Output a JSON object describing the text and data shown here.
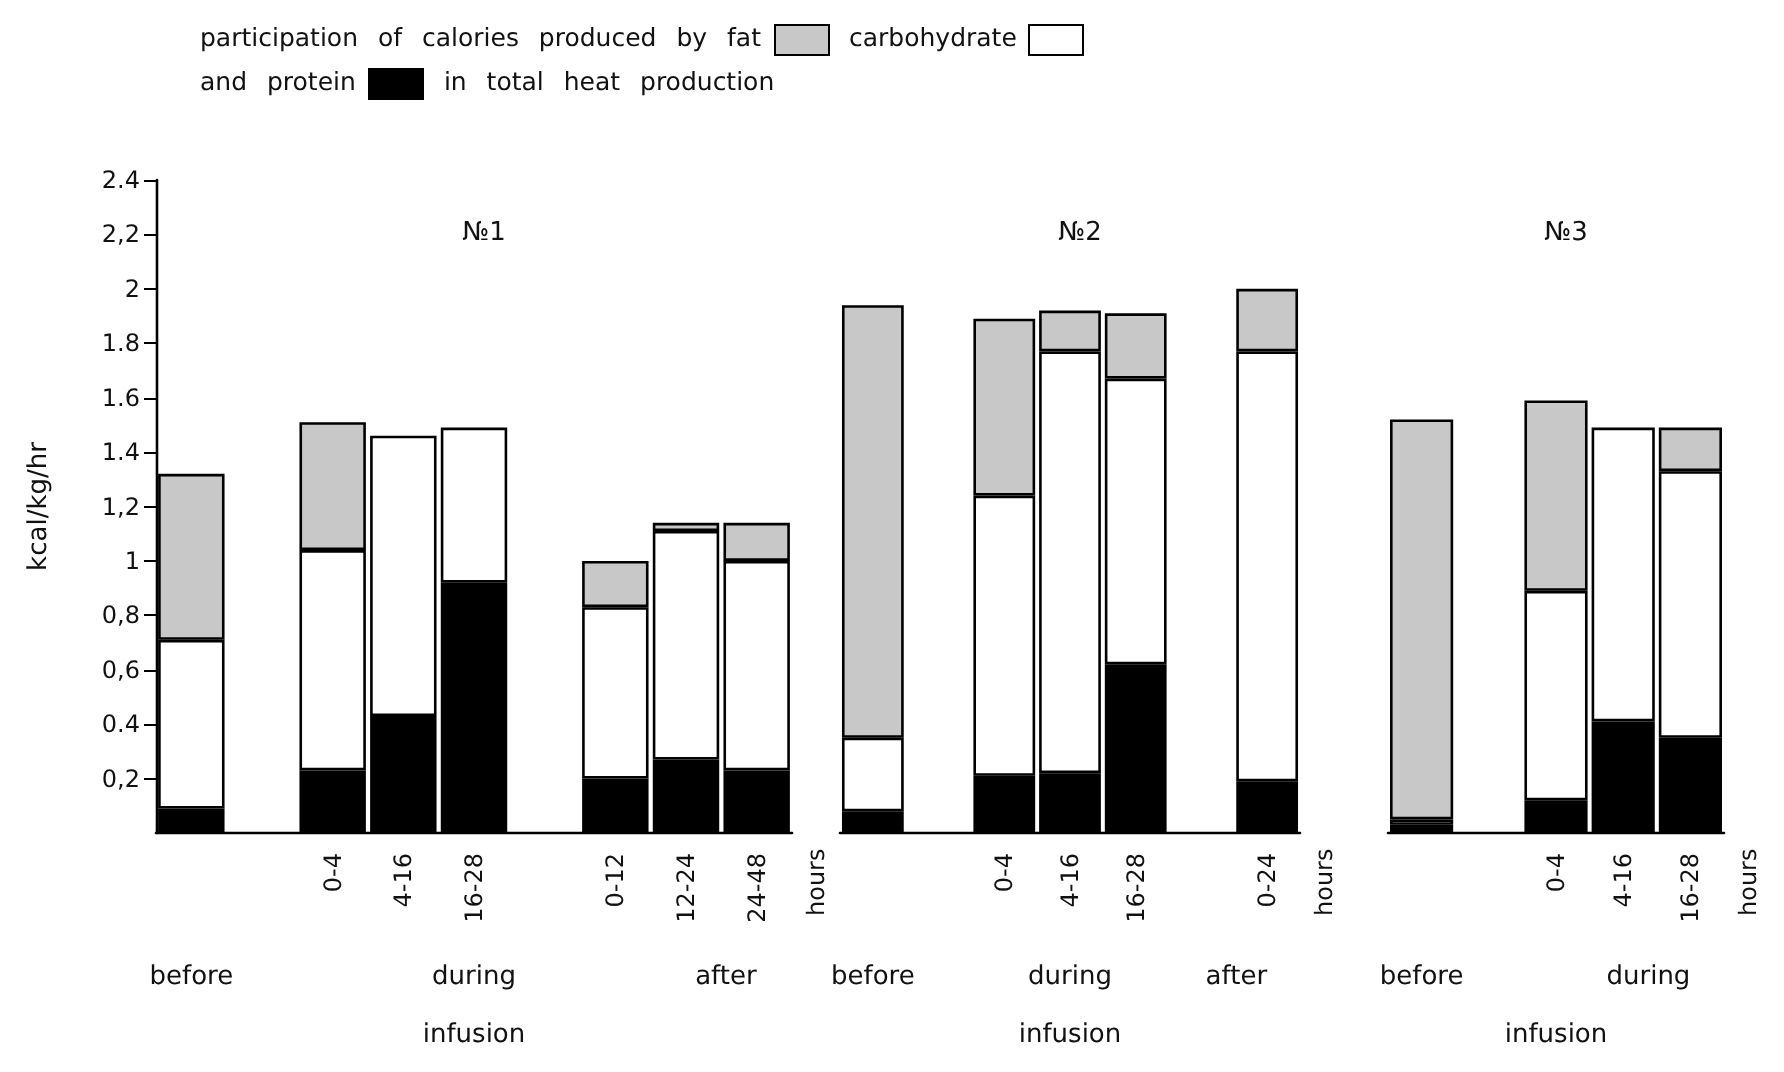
{
  "chart_data": [
    {
      "type": "bar",
      "title": "№1",
      "subtitle": "in total heat production",
      "legend_title": "participation of calories produced by",
      "legend": "top",
      "stacked": true,
      "ylabel": "kcal/kg/hr",
      "xlabel": "infusion",
      "categories": [
        null,
        null,
        "0-4",
        "4-16",
        "16-28",
        null,
        "0-12",
        "12-24",
        "24-48"
      ],
      "series": [
        {
          "name": "and protein",
          "color": "#000000",
          "values": [
            0.09,
            null,
            0.23,
            0.43,
            0.92,
            null,
            0.2,
            0.27,
            0.23
          ]
        },
        {
          "name": "carbohydrate",
          "color": "#ffffff",
          "values": [
            0.62,
            null,
            0.81,
            1.03,
            0.57,
            null,
            0.63,
            0.84,
            0.77
          ]
        },
        {
          "name": "fat",
          "color": "#c8c8c8",
          "values": [
            0.61,
            null,
            0.47,
            0,
            0,
            null,
            0.17,
            0.03,
            0.14
          ]
        }
      ],
      "ylim": [
        0,
        2.4
      ],
      "yticks": [
        {
          "value": 0.2,
          "label": "0,2"
        },
        0.4,
        {
          "value": 0.6,
          "label": "0,6"
        },
        {
          "value": 0.8,
          "label": "0,8"
        },
        1.0,
        {
          "value": 1.2,
          "label": "1,2"
        },
        1.4,
        1.6,
        1.8,
        2.0,
        {
          "value": 2.2,
          "label": "2,2"
        },
        2.4
      ],
      "annotations": [
        "before",
        "during",
        "after",
        "hours"
      ]
    },
    {
      "type": "bar",
      "title": "№2",
      "stacked": true,
      "xlabel": "infusion",
      "tick_labels": "x",
      "categories": [
        null,
        null,
        "0-4",
        "4-16",
        "16-28",
        null,
        "0-24"
      ],
      "series": [
        {
          "color": "#000000",
          "values": [
            0.08,
            null,
            0.21,
            0.22,
            0.62,
            null,
            0.19
          ]
        },
        {
          "color": "#ffffff",
          "values": [
            0.27,
            null,
            1.03,
            1.55,
            1.05,
            null,
            1.58
          ]
        },
        {
          "color": "#c8c8c8",
          "values": [
            1.59,
            null,
            0.65,
            0.15,
            0.24,
            null,
            0.23
          ]
        }
      ],
      "ylim": [
        0,
        2.4
      ],
      "annotations": [
        "before",
        "during",
        "after",
        "hours"
      ]
    },
    {
      "type": "bar",
      "title": "№3",
      "stacked": true,
      "xlabel": "infusion",
      "tick_labels": "x",
      "categories": [
        null,
        null,
        "0-4",
        "4-16",
        "16-28"
      ],
      "series": [
        {
          "color": "#000000",
          "values": [
            0.03,
            null,
            0.12,
            0.41,
            0.35
          ]
        },
        {
          "color": "#ffffff",
          "values": [
            0.02,
            null,
            0.77,
            1.08,
            0.98
          ]
        },
        {
          "color": "#c8c8c8",
          "values": [
            1.47,
            null,
            0.7,
            0,
            0.16
          ]
        }
      ],
      "ylim": [
        0,
        2.4
      ],
      "annotations": [
        "before",
        "during",
        "hours"
      ]
    }
  ]
}
